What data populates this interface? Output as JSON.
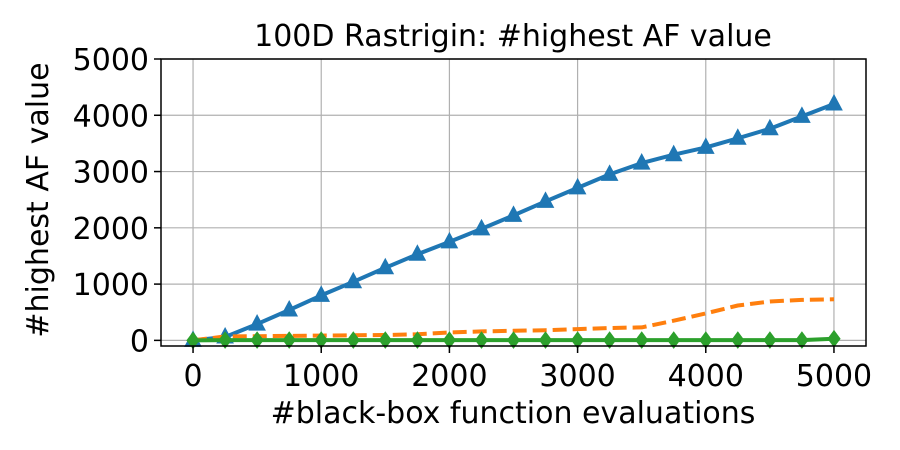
{
  "chart_data": {
    "type": "line",
    "title": "100D Rastrigin: #highest AF value",
    "xlabel": "#black-box function evaluations",
    "ylabel": "#highest AF value",
    "xlim": [
      -250,
      5250
    ],
    "ylim": [
      -100,
      5000
    ],
    "xticks": [
      0,
      1000,
      2000,
      3000,
      4000,
      5000
    ],
    "yticks": [
      0,
      1000,
      2000,
      3000,
      4000,
      5000
    ],
    "grid": true,
    "series": [
      {
        "color": "#1f77b4",
        "linestyle": "solid",
        "marker": "triangle",
        "x": [
          0,
          250,
          500,
          750,
          1000,
          1250,
          1500,
          1750,
          2000,
          2250,
          2500,
          2750,
          3000,
          3250,
          3500,
          3750,
          4000,
          4250,
          4500,
          4750,
          5000
        ],
        "y": [
          0,
          60,
          290,
          540,
          800,
          1040,
          1290,
          1530,
          1750,
          1980,
          2220,
          2470,
          2710,
          2950,
          3150,
          3300,
          3430,
          3590,
          3760,
          3980,
          4200
        ]
      },
      {
        "color": "#ff7f0e",
        "linestyle": "dashed",
        "marker": "none",
        "x": [
          0,
          250,
          500,
          750,
          1000,
          1250,
          1500,
          1750,
          2000,
          2250,
          2500,
          2750,
          3000,
          3250,
          3500,
          3750,
          4000,
          4250,
          4500,
          4750,
          5000
        ],
        "y": [
          0,
          70,
          75,
          80,
          85,
          90,
          95,
          110,
          140,
          160,
          170,
          180,
          200,
          220,
          230,
          350,
          480,
          620,
          690,
          720,
          730
        ]
      },
      {
        "color": "#2ca02c",
        "linestyle": "solid",
        "marker": "diamond",
        "x": [
          0,
          250,
          500,
          750,
          1000,
          1250,
          1500,
          1750,
          2000,
          2250,
          2500,
          2750,
          3000,
          3250,
          3500,
          3750,
          4000,
          4250,
          4500,
          4750,
          5000
        ],
        "y": [
          0,
          5,
          5,
          5,
          5,
          5,
          5,
          5,
          5,
          5,
          5,
          5,
          5,
          5,
          5,
          5,
          5,
          5,
          5,
          5,
          30
        ]
      }
    ]
  }
}
